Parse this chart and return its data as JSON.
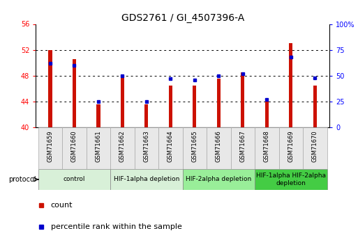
{
  "title": "GDS2761 / GI_4507396-A",
  "samples": [
    "GSM71659",
    "GSM71660",
    "GSM71661",
    "GSM71662",
    "GSM71663",
    "GSM71664",
    "GSM71665",
    "GSM71666",
    "GSM71667",
    "GSM71668",
    "GSM71669",
    "GSM71670"
  ],
  "counts": [
    52.0,
    50.5,
    43.5,
    48.0,
    43.5,
    46.5,
    46.5,
    47.5,
    48.5,
    44.0,
    53.0,
    46.5
  ],
  "percentiles": [
    62,
    60,
    25,
    50,
    25,
    47,
    46,
    50,
    52,
    27,
    68,
    48
  ],
  "ylim_left": [
    40,
    56
  ],
  "ylim_right": [
    0,
    100
  ],
  "yticks_left": [
    40,
    44,
    48,
    52,
    56
  ],
  "yticks_right": [
    0,
    25,
    50,
    75,
    100
  ],
  "bar_color": "#cc1100",
  "dot_color": "#0000cc",
  "grid_color": "#000000",
  "groups": [
    {
      "label": "control",
      "indices": [
        0,
        1,
        2
      ],
      "color": "#d8f0d8"
    },
    {
      "label": "HIF-1alpha depletion",
      "indices": [
        3,
        4,
        5
      ],
      "color": "#d8f0d8"
    },
    {
      "label": "HIF-2alpha depletion",
      "indices": [
        6,
        7,
        8
      ],
      "color": "#99ee99"
    },
    {
      "label": "HIF-1alpha HIF-2alpha\ndepletion",
      "indices": [
        9,
        10,
        11
      ],
      "color": "#44cc44"
    }
  ],
  "title_fontsize": 10,
  "tick_fontsize": 7,
  "legend_fontsize": 8,
  "protocol_fontsize": 7,
  "group_fontsize": 6.5
}
